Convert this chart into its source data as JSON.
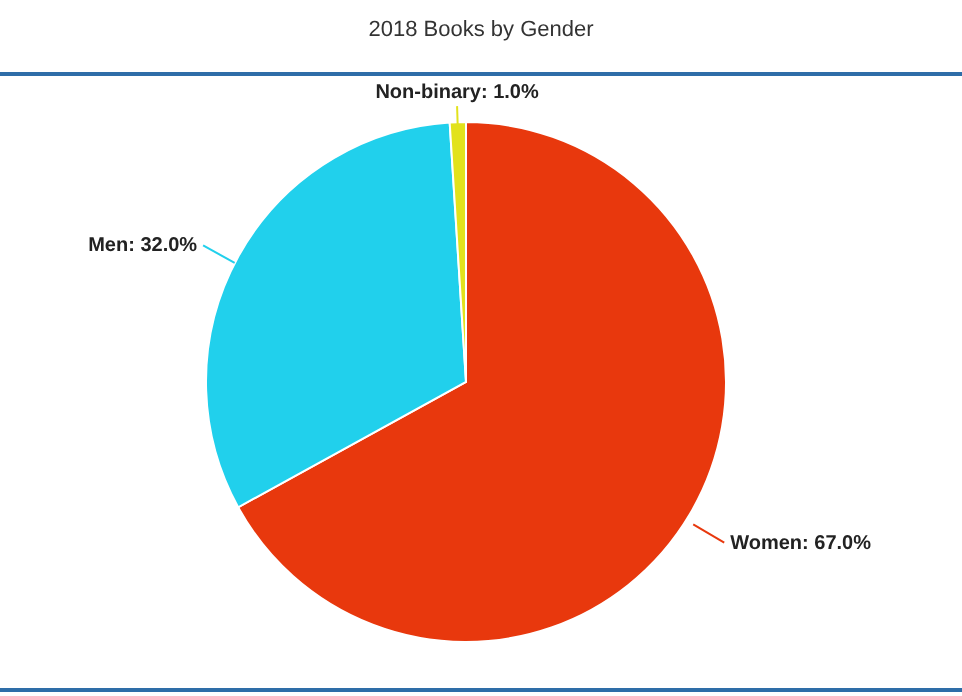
{
  "chart_data": {
    "type": "pie",
    "title": "2018 Books by Gender",
    "categories": [
      "Women",
      "Men",
      "Non-binary"
    ],
    "values": [
      67,
      32,
      1
    ],
    "colors": [
      "#e8380d",
      "#21d0ec",
      "#e2e21c"
    ],
    "value_labels": [
      "67.0%",
      "32.0%",
      "1.0%"
    ]
  }
}
